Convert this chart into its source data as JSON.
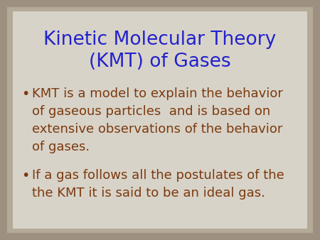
{
  "title_line1": "Kinetic Molecular Theory",
  "title_line2": "(KMT) of Gases",
  "title_color": "#2222CC",
  "bullet_color": "#7B3A10",
  "outer_bg_color": "#9E9080",
  "inner_bg_color": "#D8D3C8",
  "bullet1_lines": [
    "KMT is a model to explain the behavior",
    "of gaseous particles  and is based on",
    "extensive observations of the behavior",
    "of gases."
  ],
  "bullet2_lines": [
    "If a gas follows all the postulates of the",
    "the KMT it is said to be an ideal gas."
  ],
  "title_fontsize": 19,
  "bullet_fontsize": 13,
  "figsize": [
    4.5,
    3.38
  ],
  "dpi": 100
}
